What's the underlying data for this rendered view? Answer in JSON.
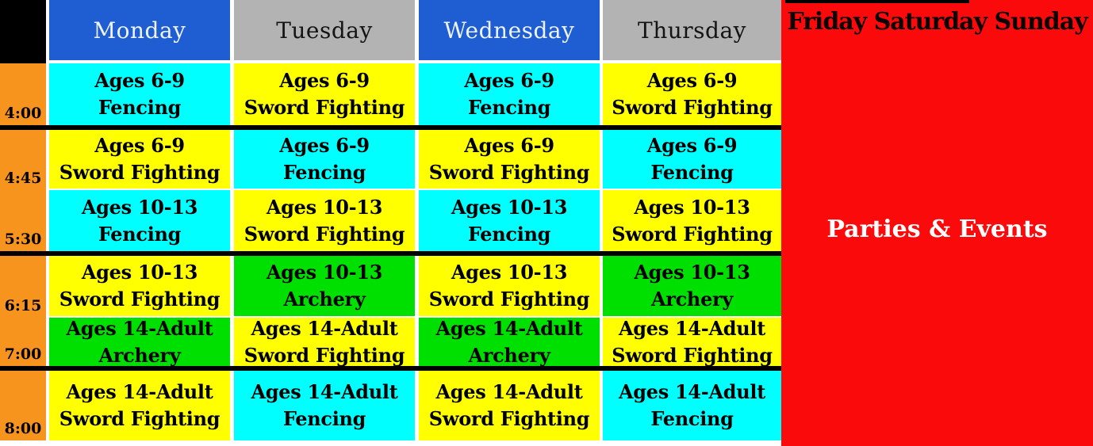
{
  "palette": {
    "header_blue": "#1e5ed2",
    "header_gray": "#b3b3b3",
    "time_orange": "#f7941e",
    "cell_cyan": "#00ffff",
    "cell_yellow": "#ffff00",
    "cell_green": "#00e000",
    "panel_red": "#fa0a0a",
    "divider_black": "#000000"
  },
  "days": [
    {
      "label": "Monday",
      "color": "blue"
    },
    {
      "label": "Tuesday",
      "color": "gray"
    },
    {
      "label": "Wednesday",
      "color": "blue"
    },
    {
      "label": "Thursday",
      "color": "gray"
    }
  ],
  "weekend_panel": {
    "title": "Friday Saturday Sunday",
    "subtitle": "Parties & Events"
  },
  "rows": [
    {
      "time": "4:00",
      "cells": [
        {
          "ages": "Ages 6-9",
          "activity": "Fencing",
          "color": "cyan"
        },
        {
          "ages": "Ages 6-9",
          "activity": "Sword Fighting",
          "color": "yellow"
        },
        {
          "ages": "Ages 6-9",
          "activity": "Fencing",
          "color": "cyan"
        },
        {
          "ages": "Ages 6-9",
          "activity": "Sword Fighting",
          "color": "yellow"
        }
      ]
    },
    {
      "time": "4:45",
      "cells": [
        {
          "ages": "Ages 6-9",
          "activity": "Sword Fighting",
          "color": "yellow"
        },
        {
          "ages": "Ages 6-9",
          "activity": "Fencing",
          "color": "cyan"
        },
        {
          "ages": "Ages 6-9",
          "activity": "Sword Fighting",
          "color": "yellow"
        },
        {
          "ages": "Ages 6-9",
          "activity": "Fencing",
          "color": "cyan"
        }
      ]
    },
    {
      "time": "5:30",
      "cells": [
        {
          "ages": "Ages 10-13",
          "activity": "Fencing",
          "color": "cyan"
        },
        {
          "ages": "Ages 10-13",
          "activity": "Sword Fighting",
          "color": "yellow"
        },
        {
          "ages": "Ages 10-13",
          "activity": "Fencing",
          "color": "cyan"
        },
        {
          "ages": "Ages 10-13",
          "activity": "Sword Fighting",
          "color": "yellow"
        }
      ]
    },
    {
      "time": "6:15",
      "cells": [
        {
          "ages": "Ages 10-13",
          "activity": "Sword Fighting",
          "color": "yellow"
        },
        {
          "ages": "Ages 10-13",
          "activity": "Archery",
          "color": "green"
        },
        {
          "ages": "Ages 10-13",
          "activity": "Sword Fighting",
          "color": "yellow"
        },
        {
          "ages": "Ages 10-13",
          "activity": "Archery",
          "color": "green"
        }
      ]
    },
    {
      "time": "7:00",
      "cells": [
        {
          "ages": "Ages 14-Adult",
          "activity": "Archery",
          "color": "green"
        },
        {
          "ages": "Ages 14-Adult",
          "activity": "Sword Fighting",
          "color": "yellow"
        },
        {
          "ages": "Ages 14-Adult",
          "activity": "Archery",
          "color": "green"
        },
        {
          "ages": "Ages 14-Adult",
          "activity": "Sword Fighting",
          "color": "yellow"
        }
      ]
    },
    {
      "time": "8:00",
      "cells": [
        {
          "ages": "Ages 14-Adult",
          "activity": "Sword Fighting",
          "color": "yellow"
        },
        {
          "ages": "Ages 14-Adult",
          "activity": "Fencing",
          "color": "cyan"
        },
        {
          "ages": "Ages 14-Adult",
          "activity": "Sword Fighting",
          "color": "yellow"
        },
        {
          "ages": "Ages 14-Adult",
          "activity": "Fencing",
          "color": "cyan"
        }
      ]
    }
  ]
}
